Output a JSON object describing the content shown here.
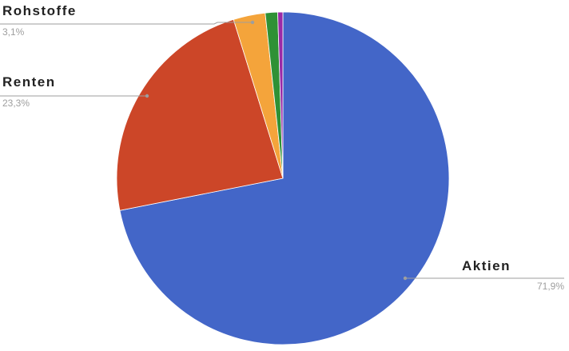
{
  "chart_data": {
    "type": "pie",
    "title": "",
    "slices": [
      {
        "name": "Aktien",
        "value": 71.9,
        "label": "71,9%",
        "color": "#4366c8",
        "labeled": true
      },
      {
        "name": "Renten",
        "value": 23.3,
        "label": "23,3%",
        "color": "#cc4628",
        "labeled": true
      },
      {
        "name": "Rohstoffe",
        "value": 3.1,
        "label": "3,1%",
        "color": "#f4a43b",
        "labeled": true
      },
      {
        "name": "",
        "value": 1.2,
        "label": "",
        "color": "#2f9135",
        "labeled": false
      },
      {
        "name": "",
        "value": 0.5,
        "label": "",
        "color": "#9a2aa7",
        "labeled": false
      }
    ],
    "start_angle_deg": 0,
    "direction": "clockwise",
    "legend": "none"
  }
}
